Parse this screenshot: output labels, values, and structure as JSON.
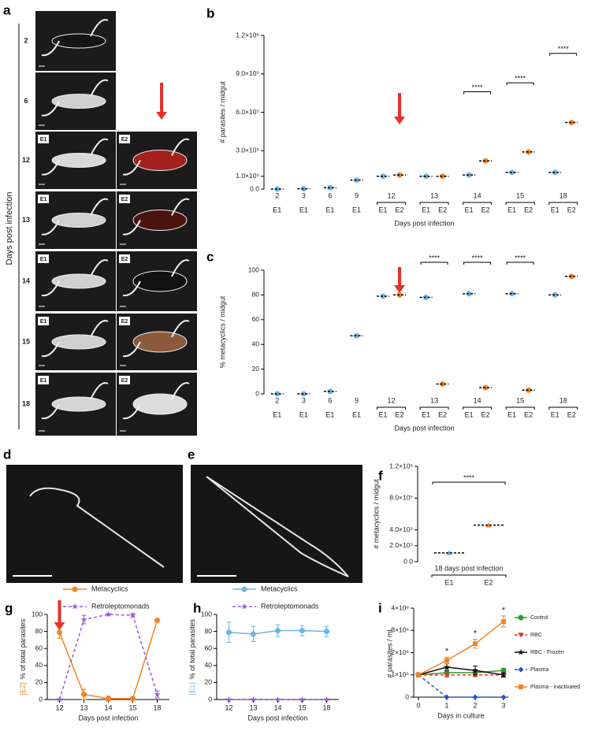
{
  "photos": {
    "a": {
      "panel": "a",
      "axis_label": "Days post infection",
      "rows": [
        {
          "day": "2"
        },
        {
          "day": "6"
        },
        {
          "day": "12",
          "tags": [
            "E1",
            "E2"
          ]
        },
        {
          "day": "13",
          "tags": [
            "E1",
            "E2"
          ]
        },
        {
          "day": "14",
          "tags": [
            "E1",
            "E2"
          ]
        },
        {
          "day": "15",
          "tags": [
            "E1",
            "E2"
          ]
        },
        {
          "day": "18",
          "tags": [
            "E1",
            "E2"
          ]
        }
      ]
    },
    "d": {
      "panel": "d"
    },
    "e": {
      "panel": "e"
    }
  },
  "chart_data": [
    {
      "panel": "b",
      "type": "strip",
      "ylabel": "# parasites / midgut",
      "xlabel": "Days post infection",
      "categories": [
        "2",
        "3",
        "6",
        "9",
        "12",
        "13",
        "14",
        "15",
        "18"
      ],
      "series": [
        {
          "name": "E1",
          "color": "#6db6e2",
          "values": [
            0,
            2000,
            10000,
            70000,
            100000,
            100000,
            110000,
            130000,
            130000
          ]
        },
        {
          "name": "E2",
          "color": "#f5821f",
          "values": [
            null,
            null,
            null,
            null,
            110000,
            100000,
            220000,
            290000,
            520000
          ]
        }
      ],
      "ylim": [
        0,
        1200000
      ],
      "yticks": [
        {
          "value": 0,
          "label": "0.0"
        },
        {
          "value": 100000,
          "label": "1.0×10⁵"
        },
        {
          "value": 300000,
          "label": "3.0×10⁵"
        },
        {
          "value": 600000,
          "label": "6.0×10⁵"
        },
        {
          "value": 900000,
          "label": "9.0×10⁵"
        },
        {
          "value": 1200000,
          "label": "1.2×10⁶"
        }
      ],
      "significance": [
        null,
        null,
        null,
        null,
        null,
        null,
        "****",
        "****",
        "****"
      ]
    },
    {
      "panel": "c",
      "type": "strip",
      "ylabel": "% metacyclics / midgut",
      "xlabel": "Days post infection",
      "categories": [
        "2",
        "3",
        "6",
        "9",
        "12",
        "13",
        "14",
        "15",
        "18"
      ],
      "series": [
        {
          "name": "E1",
          "color": "#6db6e2",
          "values": [
            0,
            0,
            2,
            47,
            79,
            78,
            81,
            81,
            80
          ]
        },
        {
          "name": "E2",
          "color": "#f5821f",
          "values": [
            null,
            null,
            null,
            null,
            80,
            8,
            5,
            3,
            95
          ]
        }
      ],
      "ylim": [
        0,
        100
      ],
      "yticks": [
        0,
        20,
        40,
        60,
        80,
        100
      ],
      "significance": [
        null,
        null,
        null,
        null,
        null,
        "****",
        "****",
        "****",
        null
      ]
    },
    {
      "panel": "f",
      "type": "strip",
      "ylabel": "# metacyclics / midgut",
      "marker": "triangle",
      "categories": [
        "18 days post infection"
      ],
      "series": [
        {
          "name": "E1",
          "color": "#6db6e2",
          "values": [
            110000
          ]
        },
        {
          "name": "E2",
          "color": "#f5821f",
          "values": [
            460000
          ]
        }
      ],
      "ylim": [
        0,
        1200000
      ],
      "yticks": [
        {
          "value": 0,
          "label": "0.0"
        },
        {
          "value": 200000,
          "label": "2.0×10⁵"
        },
        {
          "value": 400000,
          "label": "4.0×10⁵"
        },
        {
          "value": 800000,
          "label": "8.0×10⁵"
        },
        {
          "value": 1200000,
          "label": "1.2×10⁶"
        }
      ],
      "significance": [
        "****"
      ]
    },
    {
      "panel": "g",
      "type": "line",
      "ylabel_tag": "[E2]",
      "tag_color": "#f5821f",
      "ylabel": "% of total parasites",
      "xlabel": "Days post infection",
      "categories": [
        "12",
        "13",
        "14",
        "15",
        "18"
      ],
      "ylim": [
        0,
        100
      ],
      "yticks": [
        0,
        20,
        40,
        60,
        80,
        100
      ],
      "legend": "top",
      "series": [
        {
          "name": "Metacyclics",
          "color": "#f5821f",
          "marker": "circle",
          "values": [
            79,
            6,
            1,
            1,
            93
          ],
          "errors": [
            7,
            6,
            3,
            2,
            2
          ]
        },
        {
          "name": "Retroleptomonads",
          "color": "#9b59e0",
          "dash": true,
          "marker": "star",
          "values": [
            0,
            94,
            100,
            99,
            6
          ],
          "errors": [
            0,
            5,
            1,
            2,
            4
          ]
        }
      ]
    },
    {
      "panel": "h",
      "type": "line",
      "ylabel_tag": "[E1]",
      "tag_color": "#6db6e2",
      "ylabel": "% of total parasites",
      "xlabel": "Days post infection",
      "categories": [
        "12",
        "13",
        "14",
        "15",
        "18"
      ],
      "ylim": [
        0,
        100
      ],
      "yticks": [
        0,
        20,
        40,
        60,
        80,
        100
      ],
      "legend": "top",
      "series": [
        {
          "name": "Metacyclics",
          "color": "#6db6e2",
          "marker": "circle",
          "values": [
            79,
            77,
            81,
            81,
            80
          ],
          "errors": [
            12,
            9,
            7,
            6,
            6
          ]
        },
        {
          "name": "Retroleptomonads",
          "color": "#9b59e0",
          "dash": true,
          "marker": "star",
          "values": [
            0,
            0,
            0,
            0,
            0
          ]
        }
      ]
    },
    {
      "panel": "i",
      "type": "line",
      "ylabel": "# parasites / mL",
      "xlabel": "Days in culture",
      "x": [
        0,
        1,
        2,
        3
      ],
      "xlim": [
        0,
        3
      ],
      "xticks": [
        0,
        1,
        2,
        3
      ],
      "ylim": [
        0,
        4000000
      ],
      "yticks": [
        0,
        {
          "value": 1000000,
          "label": "1×10⁶"
        },
        {
          "value": 2000000,
          "label": "2×10⁶"
        },
        {
          "value": 3000000,
          "label": "3×10⁶"
        },
        {
          "value": 4000000,
          "label": "4×10⁶"
        }
      ],
      "legend": "right",
      "series": [
        {
          "name": "Control",
          "color": "#2ca02c",
          "marker": "circle",
          "values": [
            1000000,
            1100000,
            1100000,
            1200000
          ],
          "errors": [
            0,
            200000,
            150000,
            100000
          ]
        },
        {
          "name": "RBC",
          "color": "#e8312a",
          "dash": true,
          "marker": "triangle-down",
          "values": [
            1000000,
            1000000,
            1000000,
            1000000
          ],
          "errors": [
            0,
            50000,
            80000,
            50000
          ]
        },
        {
          "name": "RBC - Frozen",
          "color": "#111111",
          "marker": "star",
          "values": [
            1000000,
            1350000,
            1200000,
            1000000
          ],
          "errors": [
            0,
            150000,
            200000,
            100000
          ]
        },
        {
          "name": "Plasma",
          "color": "#2253d6",
          "dash": true,
          "marker": "diamond",
          "values": [
            1000000,
            0,
            0,
            0
          ]
        },
        {
          "name": "Plasma - inactivated",
          "color": "#f5821f",
          "marker": "square",
          "values": [
            1000000,
            1650000,
            2400000,
            3400000
          ],
          "errors": [
            0,
            150000,
            200000,
            250000
          ],
          "annotations": [
            null,
            "*",
            "*",
            "*"
          ]
        }
      ]
    }
  ]
}
